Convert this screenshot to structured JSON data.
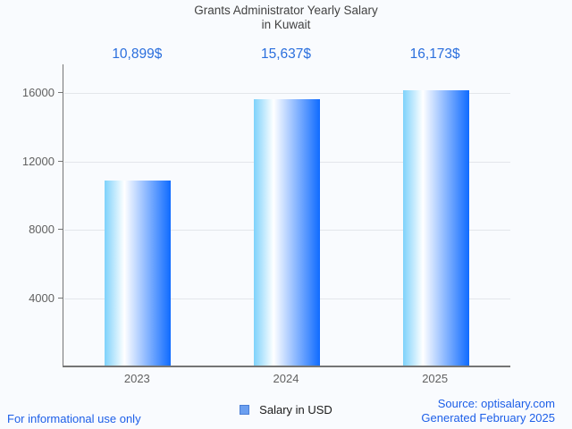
{
  "title": {
    "line1": "Grants Administrator Yearly Salary",
    "line2": "in Kuwait"
  },
  "chart_data": {
    "type": "bar",
    "title": "Grants Administrator Yearly Salary in Kuwait",
    "categories": [
      "2023",
      "2024",
      "2025"
    ],
    "series": [
      {
        "name": "Salary in USD",
        "values": [
          10899,
          15637,
          16173
        ]
      }
    ],
    "value_labels": [
      "10,899$",
      "15,637$",
      "16,173$"
    ],
    "yticks": [
      4000,
      8000,
      12000,
      16000
    ],
    "ylim": [
      0,
      17700
    ],
    "xlabel": "",
    "ylabel": "",
    "grid": true,
    "legend_position": "bottom"
  },
  "legend": {
    "label": "Salary in USD"
  },
  "footer": {
    "note": "For informational use only",
    "source": "Source: optisalary.com",
    "generated": "Generated February 2025"
  },
  "colors": {
    "bg": "#f9fbfe",
    "title": "#424242",
    "axis": "#757575",
    "axis-text": "#616161",
    "grid": "#e3e6eb",
    "bar-left": "#7ed2fb",
    "bar-mid": "#ffffff",
    "bar-right": "#0f6bff",
    "value-label": "#2b6fdd",
    "swatch": "#6b9ff0",
    "swatch-border": "#4b7fd6",
    "footer-text": "#1d5fe8"
  }
}
